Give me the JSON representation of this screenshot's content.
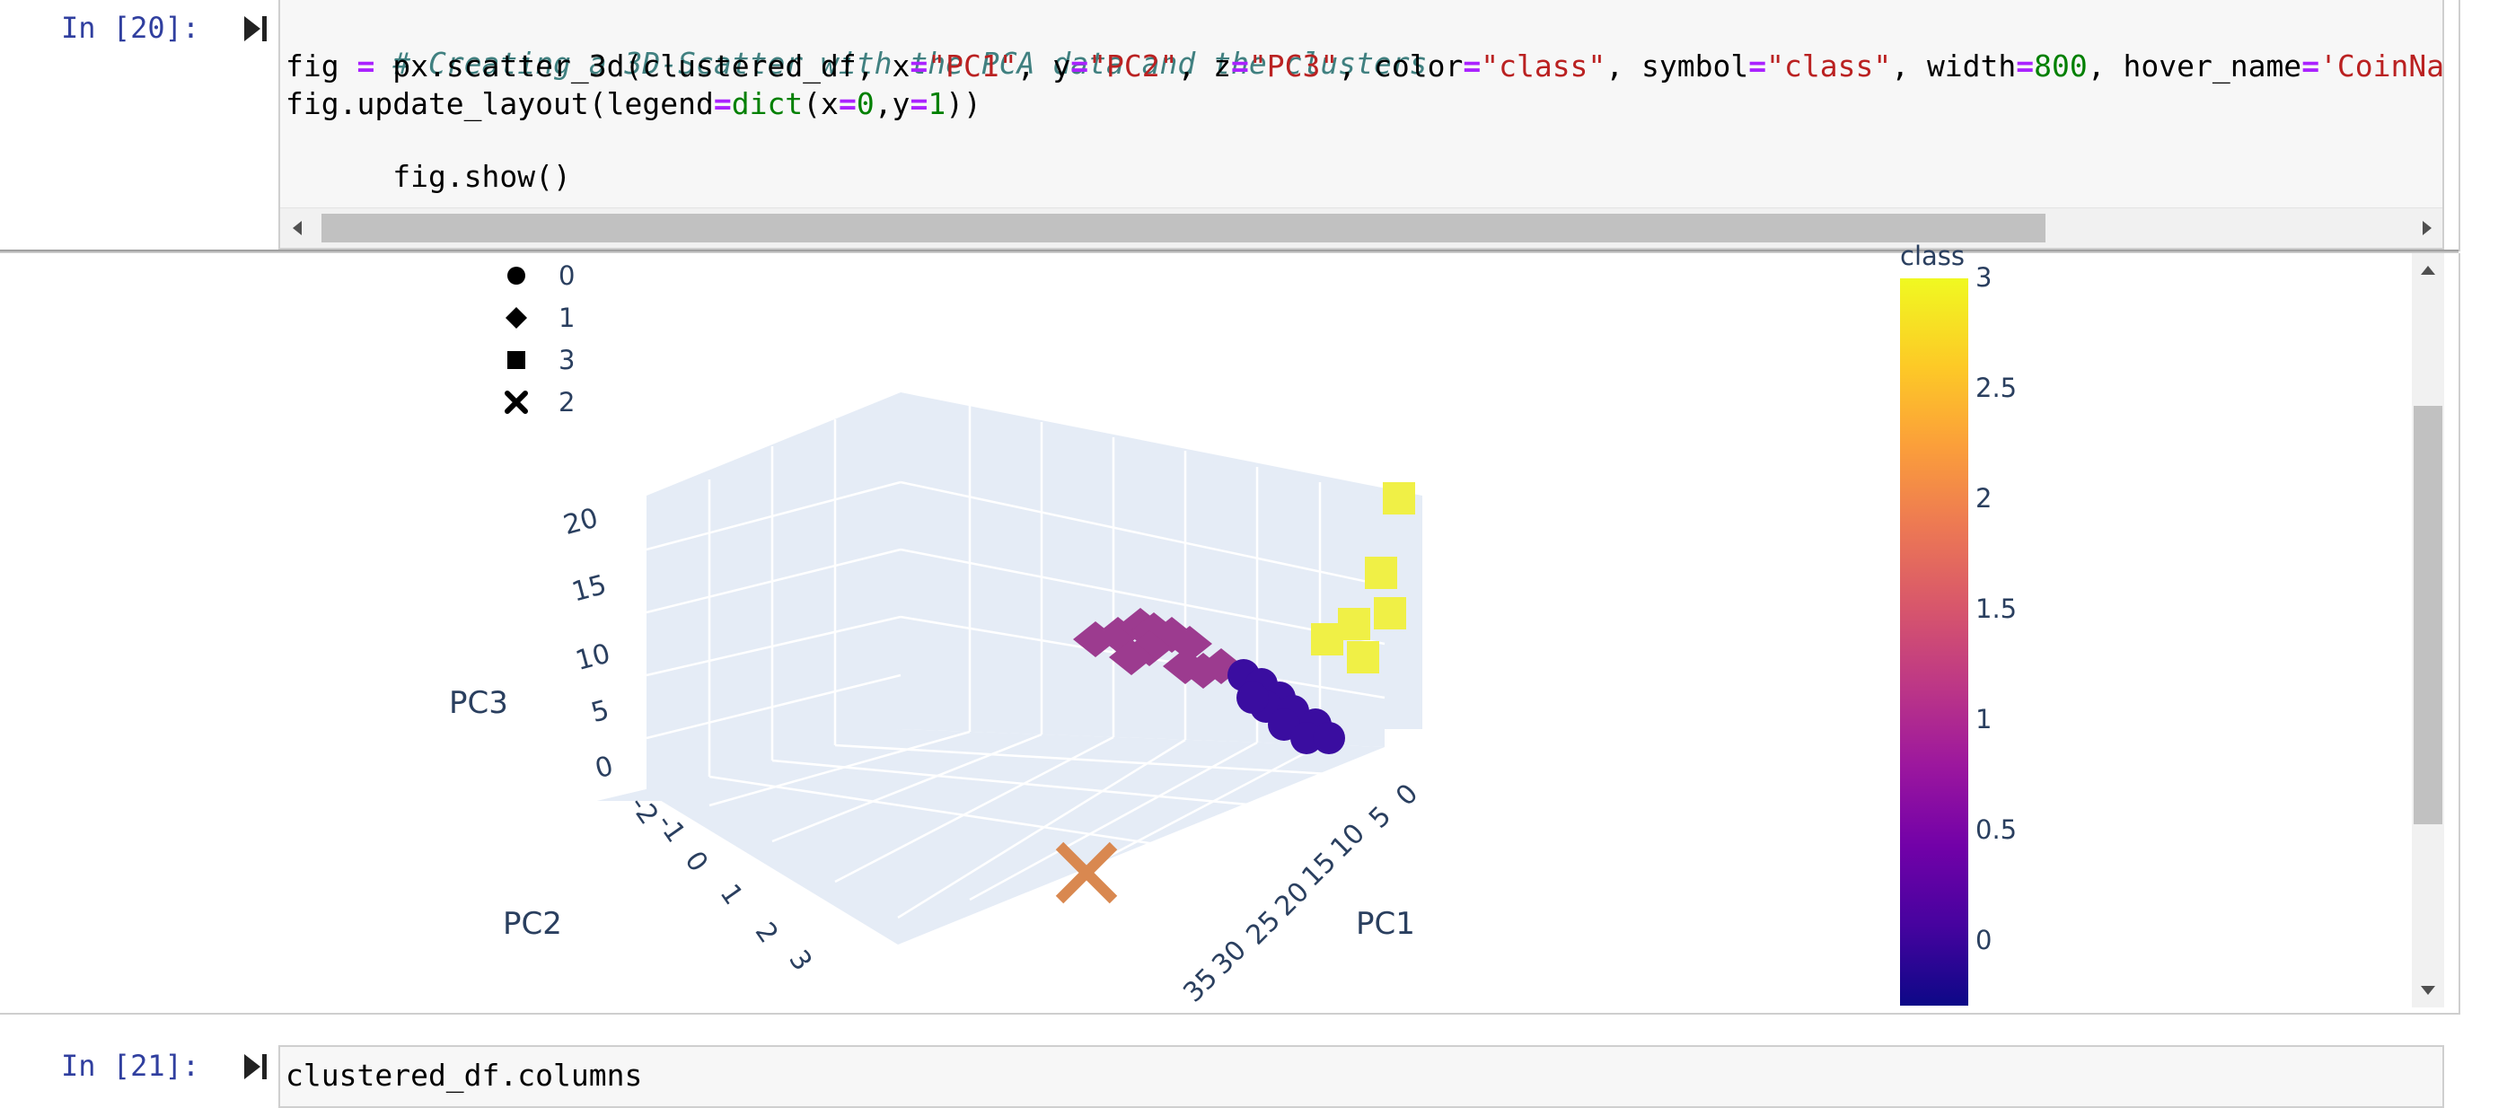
{
  "cell20": {
    "prompt": "In [20]:",
    "code": {
      "line1": "# Creating a 3D-Scatter with the PCA data and the clusters",
      "line2": {
        "p1": "fig ",
        "eq": "=",
        "p2": " px.scatter_3d(clustered_df, x",
        "eq2": "=",
        "s1": "\"PC1\"",
        "p3": ", y",
        "eq3": "=",
        "s2": "\"PC2\"",
        "p4": ", z",
        "eq4": "=",
        "s3": "\"PC3\"",
        "p5": ", color",
        "eq5": "=",
        "s4": "\"class\"",
        "p6": ", symbol",
        "eq6": "=",
        "s5": "\"class\"",
        "p7": ", width",
        "eq7": "=",
        "n1": "800",
        "p8": ", hover_name",
        "eq8": "=",
        "s6": "'CoinName'",
        "p9": ","
      },
      "line3": {
        "p1": "fig.update_layout(legend",
        "eq": "=",
        "b1": "dict",
        "p2": "(x",
        "eq2": "=",
        "n1": "0",
        "p3": ",y",
        "eq3": "=",
        "n2": "1",
        "p4": "))"
      },
      "line4": "fig.show()"
    }
  },
  "cell21": {
    "prompt": "In [21]:",
    "code": "clustered_df.columns"
  },
  "legend": {
    "items": [
      {
        "label": "0",
        "symbol": "circle"
      },
      {
        "label": "1",
        "symbol": "diamond"
      },
      {
        "label": "3",
        "symbol": "square"
      },
      {
        "label": "2",
        "symbol": "x"
      }
    ]
  },
  "colorbar": {
    "title": "class",
    "ticks": [
      "3",
      "2.5",
      "2",
      "1.5",
      "1",
      "0.5",
      "0"
    ],
    "colors": [
      "#0d0887",
      "#46039f",
      "#7201a8",
      "#9c179e",
      "#bd3786",
      "#d8576b",
      "#ed7953",
      "#fb9f3a",
      "#fdca26",
      "#f0f921"
    ]
  },
  "chart_data": {
    "type": "scatter",
    "axes": {
      "x": {
        "label": "PC1",
        "ticks": [
          "0",
          "5",
          "10",
          "15",
          "20",
          "25",
          "30",
          "35"
        ]
      },
      "y": {
        "label": "PC2",
        "ticks": [
          "-2",
          "-1",
          "0",
          "1",
          "2",
          "3"
        ]
      },
      "z": {
        "label": "PC3",
        "ticks": [
          "0",
          "5",
          "10",
          "15",
          "20"
        ]
      }
    },
    "series": [
      {
        "name": "0",
        "symbol": "circle",
        "color": "#0d0887",
        "points": [
          [
            1,
            -0.5,
            2
          ],
          [
            1.5,
            -0.3,
            2.5
          ],
          [
            2,
            -0.4,
            3
          ],
          [
            0.5,
            -0.6,
            1.5
          ],
          [
            2.5,
            -0.2,
            2
          ],
          [
            1.2,
            -0.1,
            3.2
          ],
          [
            0.8,
            -0.4,
            2.8
          ],
          [
            1.8,
            -0.5,
            1.8
          ],
          [
            2.2,
            -0.3,
            2.6
          ],
          [
            1.4,
            -0.2,
            1.6
          ]
        ]
      },
      {
        "name": "1",
        "symbol": "diamond",
        "color": "#9c179e",
        "points": [
          [
            -2,
            1.2,
            1
          ],
          [
            -1.5,
            1.0,
            1.5
          ],
          [
            -1,
            0.8,
            2
          ],
          [
            -0.5,
            0.9,
            1.2
          ],
          [
            0,
            0.6,
            1.8
          ],
          [
            -1.8,
            1.3,
            0.8
          ],
          [
            -1.2,
            1.1,
            1.4
          ],
          [
            -0.8,
            0.7,
            2.2
          ],
          [
            0.2,
            0.5,
            1.6
          ]
        ]
      },
      {
        "name": "2",
        "symbol": "x",
        "color": "#ed7953",
        "points": [
          [
            34,
            2.5,
            0.5
          ]
        ]
      },
      {
        "name": "3",
        "symbol": "square",
        "color": "#f0f921",
        "points": [
          [
            0,
            -1.5,
            20
          ],
          [
            1,
            -1.2,
            16
          ],
          [
            2,
            -1.6,
            15
          ],
          [
            3,
            -1,
            12
          ],
          [
            4,
            -1.3,
            11
          ],
          [
            2.5,
            -0.9,
            10
          ]
        ]
      }
    ]
  }
}
